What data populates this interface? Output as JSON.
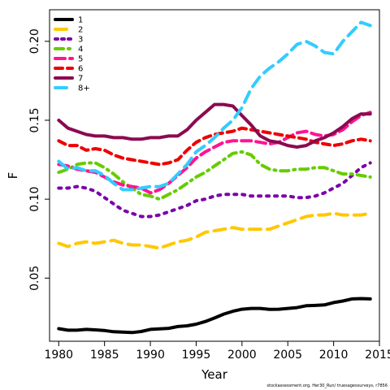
{
  "chart_data": {
    "type": "line",
    "xlabel": "Year",
    "ylabel": "F",
    "xlim": [
      1979,
      2015
    ],
    "ylim": [
      0.01,
      0.22
    ],
    "x_ticks": [
      1980,
      1985,
      1990,
      1995,
      2000,
      2005,
      2010,
      2015
    ],
    "y_ticks": [
      0.05,
      0.1,
      0.15,
      0.2
    ],
    "y_tick_labels": [
      "0.05",
      "0.10",
      "0.15",
      "0.20"
    ],
    "legend_position": "top-left",
    "grid": false,
    "series": [
      {
        "name": "1",
        "color": "#000000",
        "dash": "solid",
        "x": [
          1980,
          1981,
          1982,
          1983,
          1984,
          1985,
          1986,
          1987,
          1988,
          1989,
          1990,
          1991,
          1992,
          1993,
          1994,
          1995,
          1996,
          1997,
          1998,
          1999,
          2000,
          2001,
          2002,
          2003,
          2004,
          2005,
          2006,
          2007,
          2008,
          2009,
          2010,
          2011,
          2012,
          2013,
          2014
        ],
        "y": [
          0.018,
          0.017,
          0.017,
          0.0175,
          0.0172,
          0.0168,
          0.016,
          0.0158,
          0.0155,
          0.0162,
          0.0175,
          0.0178,
          0.0182,
          0.0193,
          0.0198,
          0.0208,
          0.0225,
          0.0247,
          0.0272,
          0.029,
          0.0303,
          0.0308,
          0.0308,
          0.0302,
          0.0303,
          0.0308,
          0.0313,
          0.0325,
          0.0327,
          0.033,
          0.0345,
          0.0355,
          0.0368,
          0.037,
          0.0368
        ]
      },
      {
        "name": "2",
        "color": "#FFC800",
        "dash": "long",
        "x": [
          1980,
          1981,
          1982,
          1983,
          1984,
          1985,
          1986,
          1987,
          1988,
          1989,
          1990,
          1991,
          1992,
          1993,
          1994,
          1995,
          1996,
          1997,
          1998,
          1999,
          2000,
          2001,
          2002,
          2003,
          2004,
          2005,
          2006,
          2007,
          2008,
          2009,
          2010,
          2011,
          2012,
          2013,
          2014
        ],
        "y": [
          0.072,
          0.07,
          0.072,
          0.073,
          0.072,
          0.073,
          0.074,
          0.072,
          0.071,
          0.071,
          0.07,
          0.069,
          0.071,
          0.073,
          0.074,
          0.076,
          0.079,
          0.08,
          0.081,
          0.082,
          0.081,
          0.081,
          0.081,
          0.081,
          0.083,
          0.085,
          0.087,
          0.089,
          0.09,
          0.09,
          0.091,
          0.09,
          0.09,
          0.09,
          0.091
        ]
      },
      {
        "name": "3",
        "color": "#7B00A8",
        "dash": "dotted",
        "x": [
          1980,
          1981,
          1982,
          1983,
          1984,
          1985,
          1986,
          1987,
          1988,
          1989,
          1990,
          1991,
          1992,
          1993,
          1994,
          1995,
          1996,
          1997,
          1998,
          1999,
          2000,
          2001,
          2002,
          2003,
          2004,
          2005,
          2006,
          2007,
          2008,
          2009,
          2010,
          2011,
          2012,
          2013,
          2014
        ],
        "y": [
          0.107,
          0.107,
          0.108,
          0.107,
          0.105,
          0.101,
          0.097,
          0.093,
          0.091,
          0.089,
          0.089,
          0.09,
          0.092,
          0.094,
          0.096,
          0.099,
          0.1,
          0.102,
          0.103,
          0.103,
          0.103,
          0.102,
          0.102,
          0.102,
          0.102,
          0.102,
          0.101,
          0.101,
          0.102,
          0.104,
          0.107,
          0.11,
          0.115,
          0.12,
          0.123
        ]
      },
      {
        "name": "4",
        "color": "#66CC00",
        "dash": "dashdot",
        "x": [
          1980,
          1981,
          1982,
          1983,
          1984,
          1985,
          1986,
          1987,
          1988,
          1989,
          1990,
          1991,
          1992,
          1993,
          1994,
          1995,
          1996,
          1997,
          1998,
          1999,
          2000,
          2001,
          2002,
          2003,
          2004,
          2005,
          2006,
          2007,
          2008,
          2009,
          2010,
          2011,
          2012,
          2013,
          2014
        ],
        "y": [
          0.117,
          0.119,
          0.122,
          0.123,
          0.123,
          0.12,
          0.116,
          0.111,
          0.107,
          0.103,
          0.102,
          0.1,
          0.103,
          0.106,
          0.11,
          0.114,
          0.117,
          0.121,
          0.125,
          0.129,
          0.13,
          0.128,
          0.122,
          0.119,
          0.118,
          0.118,
          0.119,
          0.119,
          0.12,
          0.12,
          0.118,
          0.116,
          0.116,
          0.115,
          0.114
        ]
      },
      {
        "name": "5",
        "color": "#FF1493",
        "dash": "medium",
        "x": [
          1980,
          1981,
          1982,
          1983,
          1984,
          1985,
          1986,
          1987,
          1988,
          1989,
          1990,
          1991,
          1992,
          1993,
          1994,
          1995,
          1996,
          1997,
          1998,
          1999,
          2000,
          2001,
          2002,
          2003,
          2004,
          2005,
          2006,
          2007,
          2008,
          2009,
          2010,
          2011,
          2012,
          2013,
          2014
        ],
        "y": [
          0.122,
          0.121,
          0.119,
          0.118,
          0.117,
          0.114,
          0.111,
          0.109,
          0.108,
          0.107,
          0.104,
          0.106,
          0.11,
          0.115,
          0.12,
          0.126,
          0.13,
          0.133,
          0.136,
          0.137,
          0.137,
          0.137,
          0.136,
          0.135,
          0.136,
          0.139,
          0.142,
          0.143,
          0.141,
          0.14,
          0.141,
          0.144,
          0.149,
          0.153,
          0.155
        ]
      },
      {
        "name": "6",
        "color": "#EE0000",
        "dash": "short",
        "x": [
          1980,
          1981,
          1982,
          1983,
          1984,
          1985,
          1986,
          1987,
          1988,
          1989,
          1990,
          1991,
          1992,
          1993,
          1994,
          1995,
          1996,
          1997,
          1998,
          1999,
          2000,
          2001,
          2002,
          2003,
          2004,
          2005,
          2006,
          2007,
          2008,
          2009,
          2010,
          2011,
          2012,
          2013,
          2014
        ],
        "y": [
          0.137,
          0.134,
          0.134,
          0.131,
          0.132,
          0.131,
          0.128,
          0.126,
          0.125,
          0.124,
          0.123,
          0.122,
          0.123,
          0.125,
          0.131,
          0.136,
          0.139,
          0.141,
          0.142,
          0.143,
          0.145,
          0.144,
          0.143,
          0.142,
          0.141,
          0.14,
          0.139,
          0.138,
          0.136,
          0.135,
          0.134,
          0.135,
          0.137,
          0.138,
          0.137
        ]
      },
      {
        "name": "7",
        "color": "#8B0A50",
        "dash": "solid",
        "x": [
          1980,
          1981,
          1982,
          1983,
          1984,
          1985,
          1986,
          1987,
          1988,
          1989,
          1990,
          1991,
          1992,
          1993,
          1994,
          1995,
          1996,
          1997,
          1998,
          1999,
          2000,
          2001,
          2002,
          2003,
          2004,
          2005,
          2006,
          2007,
          2008,
          2009,
          2010,
          2011,
          2012,
          2013,
          2014
        ],
        "y": [
          0.15,
          0.145,
          0.143,
          0.141,
          0.14,
          0.14,
          0.139,
          0.139,
          0.138,
          0.138,
          0.139,
          0.139,
          0.14,
          0.14,
          0.144,
          0.15,
          0.155,
          0.16,
          0.16,
          0.159,
          0.153,
          0.147,
          0.14,
          0.137,
          0.136,
          0.134,
          0.133,
          0.134,
          0.137,
          0.139,
          0.142,
          0.146,
          0.151,
          0.154,
          0.154
        ]
      },
      {
        "name": "8+",
        "color": "#33CCFF",
        "dash": "long",
        "x": [
          1980,
          1981,
          1982,
          1983,
          1984,
          1985,
          1986,
          1987,
          1988,
          1989,
          1990,
          1991,
          1992,
          1993,
          1994,
          1995,
          1996,
          1997,
          1998,
          1999,
          2000,
          2001,
          2002,
          2003,
          2004,
          2005,
          2006,
          2007,
          2008,
          2009,
          2010,
          2011,
          2012,
          2013,
          2014
        ],
        "y": [
          0.124,
          0.119,
          0.12,
          0.118,
          0.118,
          0.115,
          0.11,
          0.106,
          0.106,
          0.107,
          0.108,
          0.108,
          0.11,
          0.116,
          0.122,
          0.13,
          0.134,
          0.139,
          0.145,
          0.15,
          0.158,
          0.17,
          0.178,
          0.183,
          0.187,
          0.192,
          0.198,
          0.2,
          0.197,
          0.193,
          0.192,
          0.2,
          0.206,
          0.212,
          0.21
        ]
      }
    ]
  },
  "footnote": "stockassessment.org, Her30_Run/ truesagessurveys, r7856"
}
